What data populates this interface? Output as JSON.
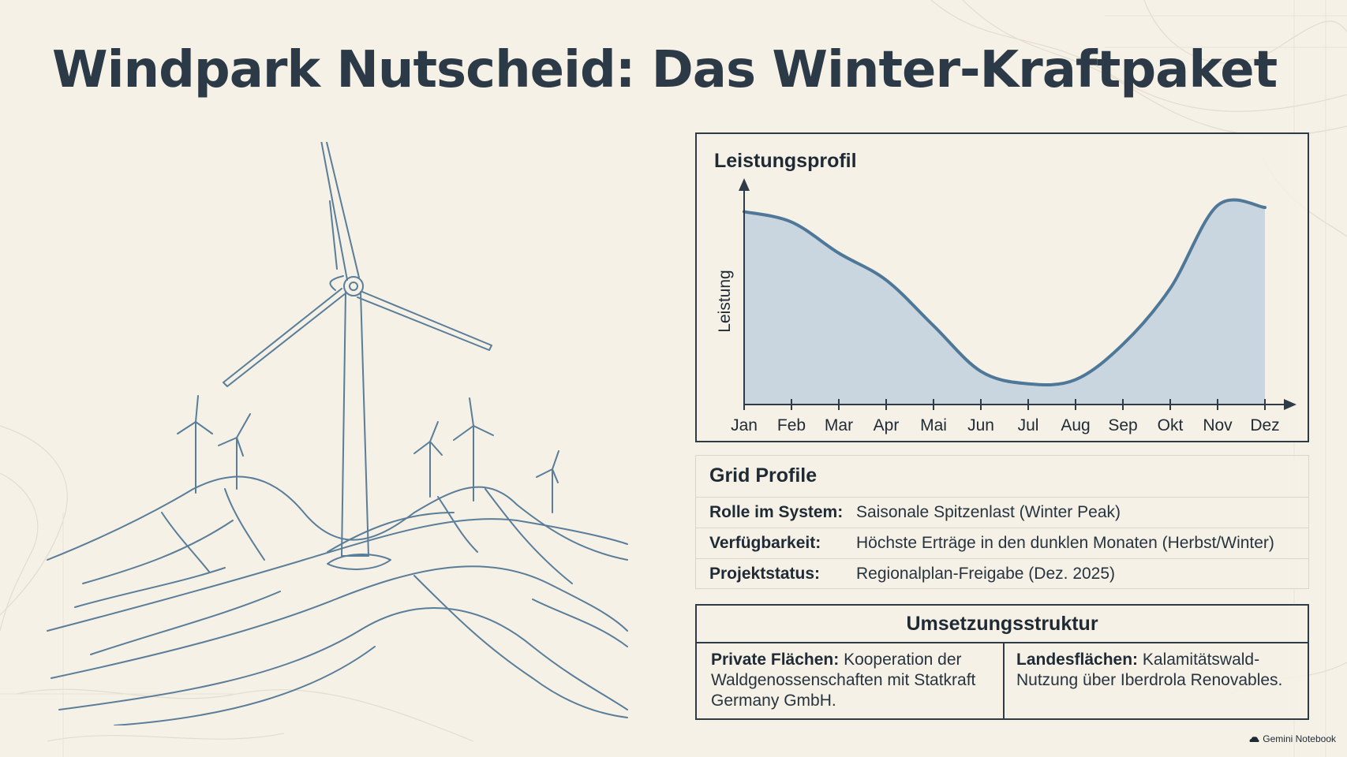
{
  "title": "Windpark Nutscheid: Das Winter-Kraftpaket",
  "chart_data": {
    "type": "area",
    "title": "Leistungsprofil",
    "xlabel": "",
    "ylabel": "Leistung",
    "categories": [
      "Jan",
      "Feb",
      "Mar",
      "Apr",
      "Mai",
      "Jun",
      "Jul",
      "Aug",
      "Sep",
      "Okt",
      "Nov",
      "Dez"
    ],
    "values": [
      0.93,
      0.88,
      0.73,
      0.6,
      0.38,
      0.16,
      0.1,
      0.12,
      0.29,
      0.56,
      0.96,
      0.95
    ],
    "ylim": [
      0,
      1
    ],
    "grid": false,
    "legend": "none",
    "colors": {
      "line": "#4f7898",
      "fill": "#c9d6df",
      "axis": "#2f3b47"
    }
  },
  "grid_profile": {
    "title": "Grid Profile",
    "rows": [
      {
        "label": "Rolle im System:",
        "value": "Saisonale Spitzenlast (Winter Peak)"
      },
      {
        "label": "Verfügbarkeit:",
        "value": "Höchste Erträge in den dunklen Monaten (Herbst/Winter)"
      },
      {
        "label": "Projektstatus:",
        "value": "Regionalplan-Freigabe (Dez. 2025)"
      }
    ]
  },
  "implementation": {
    "title": "Umsetzungsstruktur",
    "left": {
      "label": "Private Flächen:",
      "text": " Kooperation der Waldgenossenschaften mit Statkraft Germany GmbH."
    },
    "right": {
      "label": "Landesflächen:",
      "text": " Kalamitätswald-Nutzung über Iberdrola Renovables."
    }
  },
  "brand": {
    "label": "Gemini Notebook",
    "icon": "cloud-icon"
  },
  "illustration": {
    "subject": "wind-turbines-on-hills",
    "line_color": "#5a7d99"
  }
}
